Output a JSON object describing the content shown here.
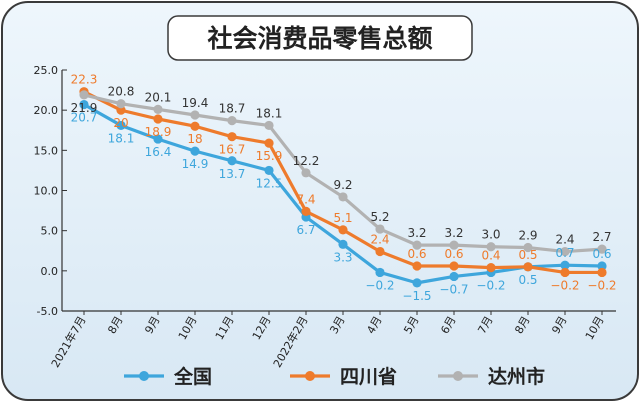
{
  "chart_data": {
    "type": "line",
    "title": "社会消费品零售总额",
    "xlabel": "",
    "ylabel": "",
    "ylim": [
      -5.0,
      25.0
    ],
    "yticks": [
      "25.0",
      "20.0",
      "15.0",
      "10.0",
      "5.0",
      "0.0",
      "-5.0"
    ],
    "ytick_values": [
      25,
      20,
      15,
      10,
      5,
      0,
      -5
    ],
    "grid": false,
    "legend_placement": "bottom",
    "categories": [
      "2021年7月",
      "8月",
      "9月",
      "10月",
      "11月",
      "12月",
      "2022年2月",
      "3月",
      "4月",
      "5月",
      "6月",
      "7月",
      "8月",
      "9月",
      "10月"
    ],
    "series": [
      {
        "name": "全国",
        "color": "#3ea6dc",
        "values": [
          20.7,
          18.1,
          16.4,
          14.9,
          13.7,
          12.5,
          6.7,
          3.3,
          -0.2,
          -1.5,
          -0.7,
          -0.2,
          0.5,
          0.7,
          0.6
        ],
        "labels": [
          "20.7",
          "18.1",
          "16.4",
          "14.9",
          "13.7",
          "12.5",
          "6.7",
          "3.3",
          "−0.2",
          "−1.5",
          "−0.7",
          "−0.2",
          "0.5",
          "0.7",
          "0.6"
        ],
        "label_pos": [
          "below",
          "below",
          "below",
          "below",
          "below",
          "below",
          "below",
          "below",
          "below",
          "below",
          "below",
          "below",
          "below",
          "above",
          "above"
        ]
      },
      {
        "name": "四川省",
        "color": "#ee7b2c",
        "values": [
          22.3,
          20,
          18.9,
          18,
          16.7,
          15.9,
          7.4,
          5.1,
          2.4,
          0.6,
          0.6,
          0.4,
          0.5,
          -0.2,
          -0.2
        ],
        "labels": [
          "22.3",
          "20",
          "18.9",
          "18",
          "16.7",
          "15.9",
          "7.4",
          "5.1",
          "2.4",
          "0.6",
          "0.6",
          "0.4",
          "0.5",
          "−0.2",
          "−0.2"
        ],
        "label_pos": [
          "above",
          "below",
          "below",
          "below",
          "below",
          "below",
          "above",
          "above",
          "above",
          "above",
          "above",
          "above",
          "above",
          "below",
          "below"
        ]
      },
      {
        "name": "达州市",
        "color": "#b2b2b2",
        "values": [
          21.9,
          20.8,
          20.1,
          19.4,
          18.7,
          18.1,
          12.2,
          9.2,
          5.2,
          3.2,
          3.2,
          3.0,
          2.9,
          2.4,
          2.7
        ],
        "labels": [
          "21.9",
          "20.8",
          "20.1",
          "19.4",
          "18.7",
          "18.1",
          "12.2",
          "9.2",
          "5.2",
          "3.2",
          "3.2",
          "3.0",
          "2.9",
          "2.4",
          "2.7"
        ],
        "label_pos": [
          "below",
          "above",
          "above",
          "above",
          "above",
          "above",
          "above",
          "above",
          "above",
          "above",
          "above",
          "above",
          "above",
          "above",
          "above"
        ]
      }
    ]
  },
  "colors": {
    "frame_border": "#3a3a3a",
    "title_box_bg": "#ffffff",
    "plot_bg_top": "#eef6fc",
    "plot_bg_bottom": "#d8e8f4"
  }
}
